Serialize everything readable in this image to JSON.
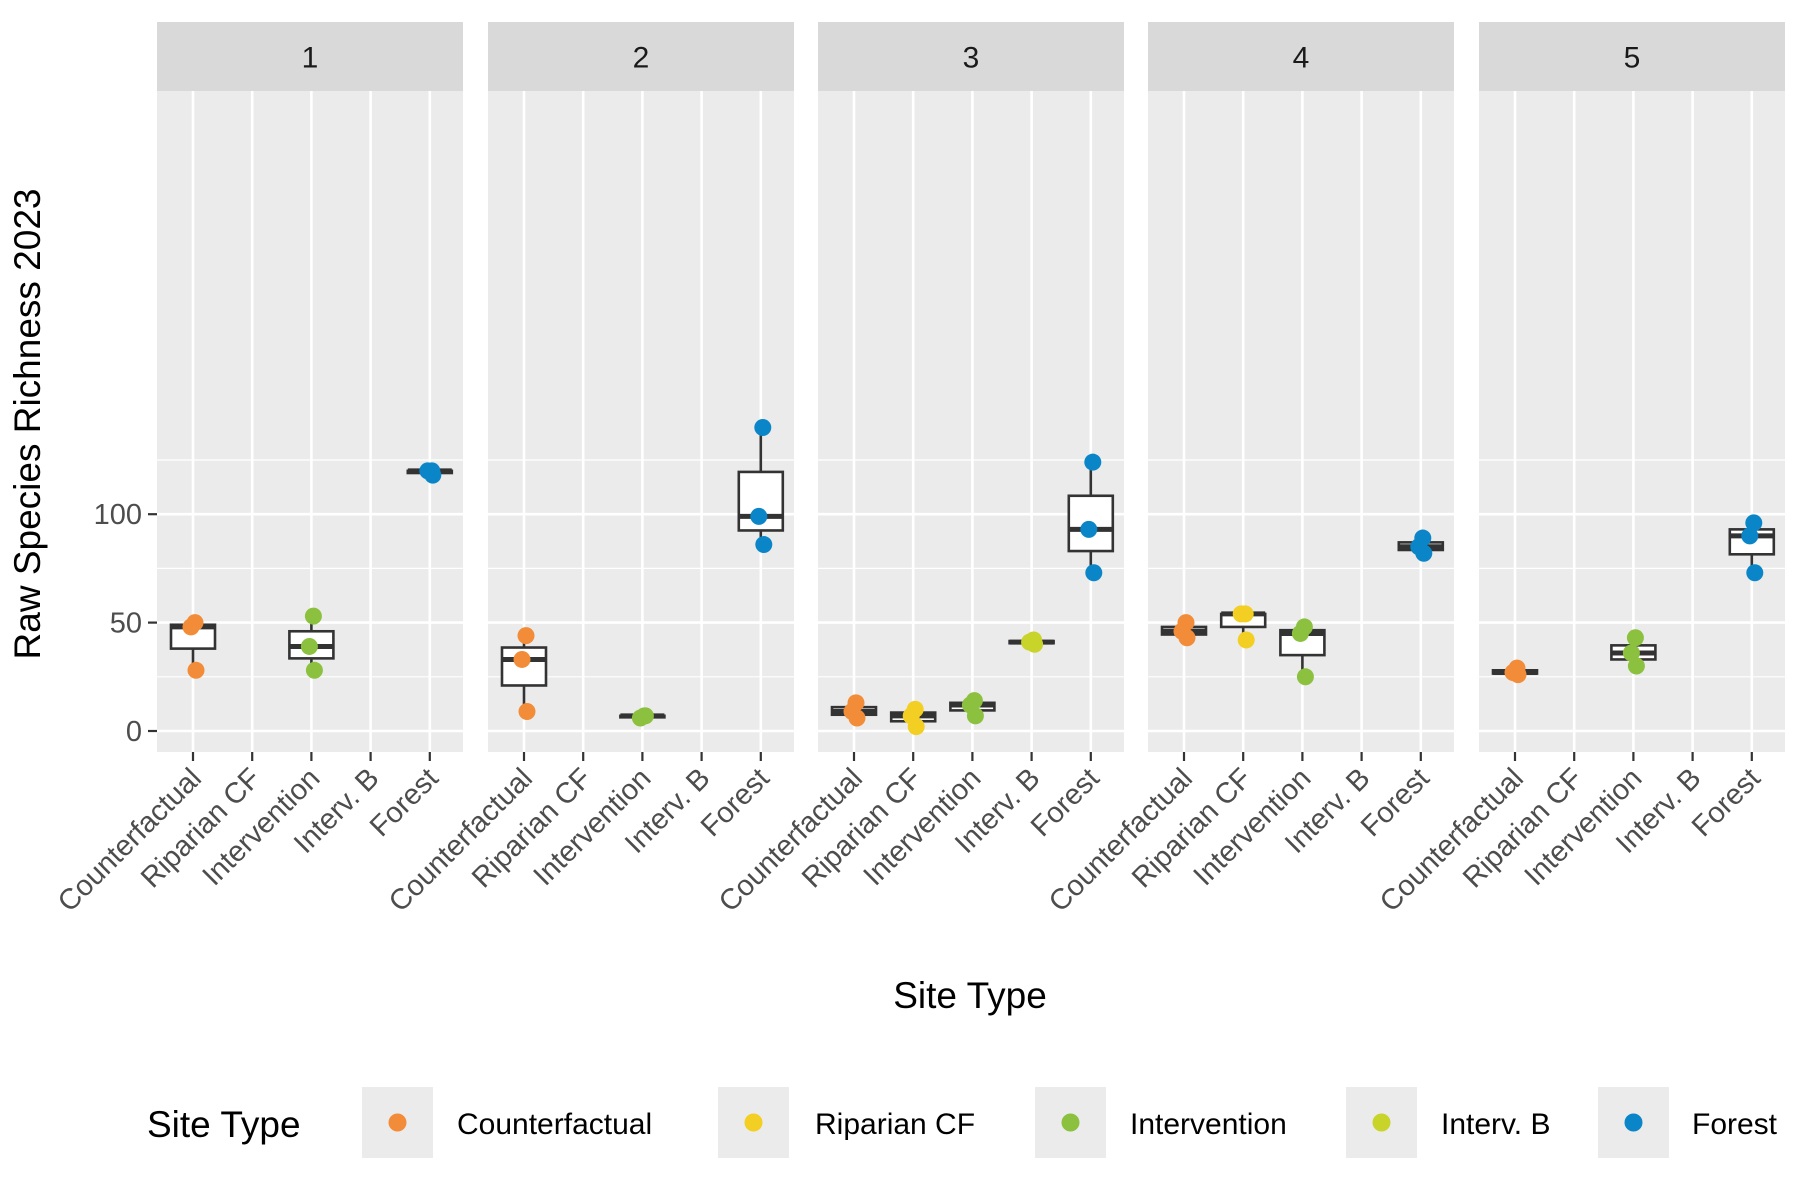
{
  "chart_data": {
    "type": "box",
    "ylabel": "Raw Species Richness 2023",
    "xlabel": "Site Type",
    "ylim": [
      -5,
      148
    ],
    "y_ticks": [
      0,
      50,
      100
    ],
    "y_tick_labels": [
      "0",
      "50",
      "100"
    ],
    "grid": true,
    "categories": [
      "Counterfactual",
      "Riparian CF",
      "Intervention",
      "Interv. B",
      "Forest"
    ],
    "colors": {
      "Counterfactual": "#F28C38",
      "Riparian CF": "#F2CF22",
      "Intervention": "#8BC13F",
      "Interv. B": "#C9D42B",
      "Forest": "#0A86C8"
    },
    "legend": {
      "title": "Site Type",
      "position": "bottom",
      "items": [
        "Counterfactual",
        "Riparian CF",
        "Intervention",
        "Interv. B",
        "Forest"
      ]
    },
    "panels": [
      {
        "label": "1",
        "groups": [
          {
            "category": "Counterfactual",
            "points": [
              50,
              48,
              28
            ],
            "box": {
              "min": 28,
              "q1": 38,
              "median": 48,
              "q3": 49,
              "max": 50
            }
          },
          {
            "category": "Intervention",
            "points": [
              53,
              39,
              28
            ],
            "box": {
              "min": 28,
              "q1": 33.5,
              "median": 39,
              "q3": 46,
              "max": 53
            }
          },
          {
            "category": "Forest",
            "points": [
              120,
              120,
              118
            ],
            "box": {
              "min": 118,
              "q1": 119,
              "median": 120,
              "q3": 120,
              "max": 120
            }
          }
        ]
      },
      {
        "label": "2",
        "groups": [
          {
            "category": "Counterfactual",
            "points": [
              44,
              33,
              9
            ],
            "box": {
              "min": 9,
              "q1": 21,
              "median": 33,
              "q3": 38.5,
              "max": 44
            }
          },
          {
            "category": "Intervention",
            "points": [
              7,
              6,
              7
            ],
            "box": {
              "min": 6,
              "q1": 6.5,
              "median": 7,
              "q3": 7,
              "max": 7
            }
          },
          {
            "category": "Forest",
            "points": [
              140,
              99,
              86
            ],
            "box": {
              "min": 86,
              "q1": 92.5,
              "median": 99,
              "q3": 119.5,
              "max": 140
            }
          }
        ]
      },
      {
        "label": "3",
        "groups": [
          {
            "category": "Counterfactual",
            "points": [
              13,
              9,
              6
            ],
            "box": {
              "min": 6,
              "q1": 7.5,
              "median": 9,
              "q3": 11,
              "max": 13
            }
          },
          {
            "category": "Riparian CF",
            "points": [
              10,
              7,
              2
            ],
            "box": {
              "min": 2,
              "q1": 4.5,
              "median": 7,
              "q3": 8.5,
              "max": 10
            }
          },
          {
            "category": "Intervention",
            "points": [
              14,
              12,
              7
            ],
            "box": {
              "min": 7,
              "q1": 9.5,
              "median": 12,
              "q3": 13,
              "max": 14
            }
          },
          {
            "category": "Interv. B",
            "points": [
              42,
              41,
              40
            ],
            "box": {
              "min": 40,
              "q1": 40.5,
              "median": 41,
              "q3": 41.5,
              "max": 42
            }
          },
          {
            "category": "Forest",
            "points": [
              124,
              93,
              73
            ],
            "box": {
              "min": 73,
              "q1": 83,
              "median": 93,
              "q3": 108.5,
              "max": 124
            }
          }
        ]
      },
      {
        "label": "4",
        "groups": [
          {
            "category": "Counterfactual",
            "points": [
              50,
              46,
              43
            ],
            "box": {
              "min": 43,
              "q1": 44.5,
              "median": 46,
              "q3": 48,
              "max": 50
            }
          },
          {
            "category": "Riparian CF",
            "points": [
              54,
              54,
              42
            ],
            "box": {
              "min": 42,
              "q1": 48,
              "median": 54,
              "q3": 54,
              "max": 54
            }
          },
          {
            "category": "Intervention",
            "points": [
              48,
              45,
              25
            ],
            "box": {
              "min": 25,
              "q1": 35,
              "median": 45,
              "q3": 46.5,
              "max": 48
            }
          },
          {
            "category": "Forest",
            "points": [
              89,
              85,
              82
            ],
            "box": {
              "min": 82,
              "q1": 83.5,
              "median": 85,
              "q3": 87,
              "max": 89
            }
          }
        ]
      },
      {
        "label": "5",
        "groups": [
          {
            "category": "Counterfactual",
            "points": [
              29,
              27,
              26
            ],
            "box": {
              "min": 26,
              "q1": 26.5,
              "median": 27,
              "q3": 28,
              "max": 29
            }
          },
          {
            "category": "Intervention",
            "points": [
              43,
              36,
              30
            ],
            "box": {
              "min": 30,
              "q1": 33,
              "median": 36,
              "q3": 39.5,
              "max": 43
            }
          },
          {
            "category": "Forest",
            "points": [
              96,
              90,
              73
            ],
            "box": {
              "min": 73,
              "q1": 81.5,
              "median": 90,
              "q3": 93,
              "max": 96
            }
          }
        ]
      }
    ]
  }
}
